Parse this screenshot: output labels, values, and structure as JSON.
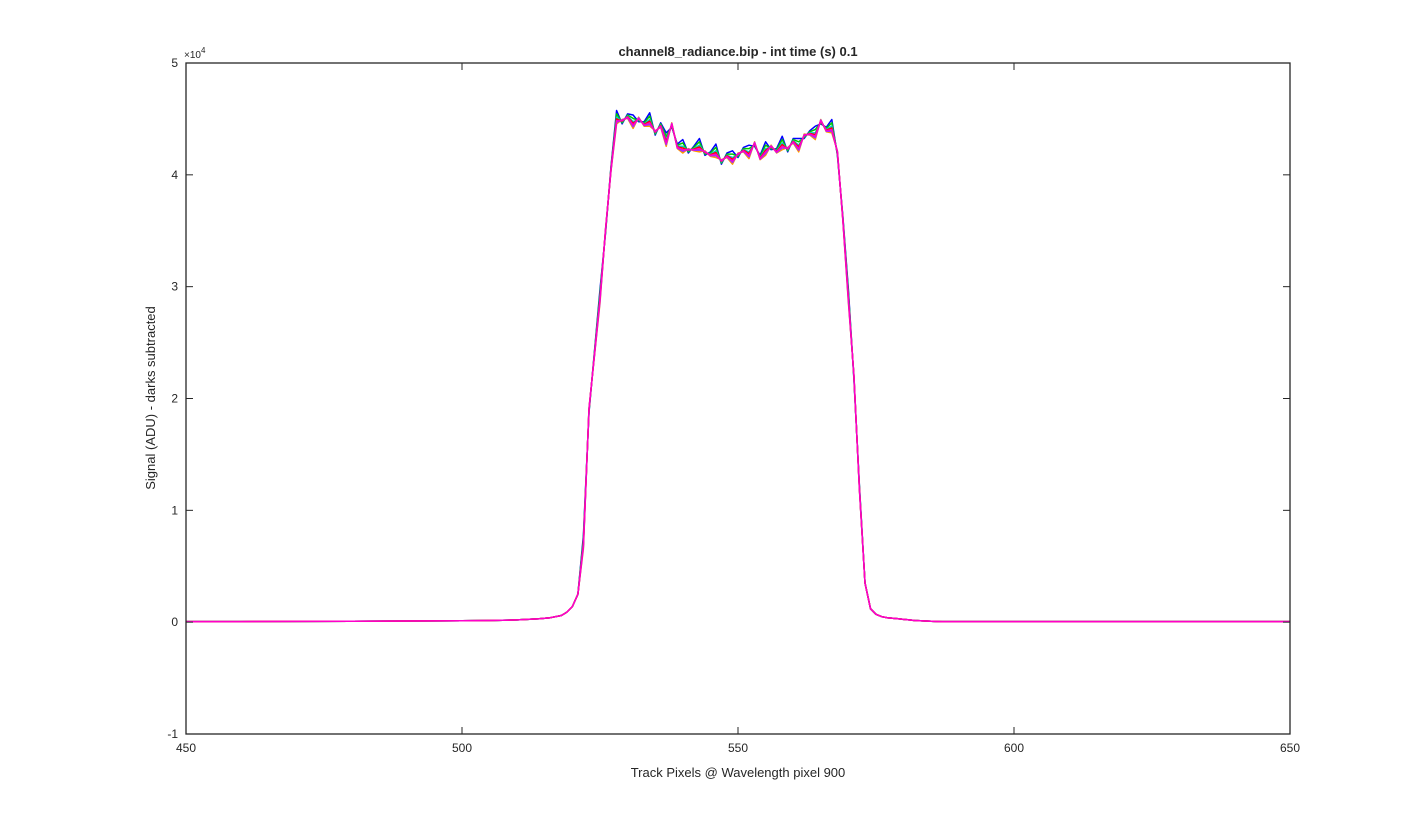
{
  "chart_data": {
    "type": "line",
    "title": "channel8_radiance.bip - int time (s) 0.1",
    "xlabel": "Track Pixels @ Wavelength pixel 900",
    "ylabel": "Signal (ADU) - darks subtracted",
    "y_exponent_label": "×10",
    "y_exponent_power": "4",
    "xlim": [
      450,
      650
    ],
    "ylim": [
      -1,
      5
    ],
    "xticks": [
      "450",
      "500",
      "550",
      "600",
      "650"
    ],
    "yticks": [
      "-1",
      "0",
      "1",
      "2",
      "3",
      "4",
      "5"
    ],
    "grid": false,
    "box": true,
    "y_scale_factor": 10000,
    "base_profile": {
      "x": [
        450,
        460,
        470,
        480,
        490,
        500,
        505,
        510,
        514,
        516,
        518,
        519,
        520,
        521,
        522,
        523,
        524,
        525,
        526,
        527,
        528,
        529,
        530,
        531,
        532,
        533,
        534,
        535,
        536,
        537,
        538,
        539,
        540,
        541,
        542,
        543,
        544,
        545,
        546,
        547,
        548,
        549,
        550,
        551,
        552,
        553,
        554,
        555,
        556,
        557,
        558,
        559,
        560,
        561,
        562,
        563,
        564,
        565,
        566,
        567,
        568,
        569,
        570,
        571,
        572,
        573,
        574,
        575,
        576,
        577,
        578,
        579,
        580,
        581,
        582,
        583,
        584,
        585,
        586,
        587,
        588,
        590,
        595,
        600,
        610,
        620,
        630,
        640,
        650
      ],
      "y": [
        0.005,
        0.005,
        0.007,
        0.008,
        0.01,
        0.012,
        0.015,
        0.02,
        0.03,
        0.04,
        0.06,
        0.09,
        0.14,
        0.25,
        0.7,
        1.9,
        2.4,
        2.9,
        3.5,
        4.05,
        4.5,
        4.48,
        4.52,
        4.46,
        4.5,
        4.45,
        4.48,
        4.38,
        4.44,
        4.3,
        4.45,
        4.25,
        4.24,
        4.22,
        4.23,
        4.25,
        4.2,
        4.18,
        4.2,
        4.12,
        4.17,
        4.14,
        4.18,
        4.22,
        4.19,
        4.28,
        4.15,
        4.22,
        4.25,
        4.21,
        4.27,
        4.23,
        4.3,
        4.25,
        4.35,
        4.37,
        4.36,
        4.48,
        4.4,
        4.42,
        4.2,
        3.6,
        2.9,
        2.2,
        1.2,
        0.35,
        0.12,
        0.07,
        0.05,
        0.04,
        0.035,
        0.03,
        0.025,
        0.02,
        0.015,
        0.012,
        0.01,
        0.008,
        0.006,
        0.005,
        0.005,
        0.005,
        0.005,
        0.005,
        0.005,
        0.005,
        0.005,
        0.005,
        0.005
      ]
    },
    "series": [
      {
        "color": "#0000ff",
        "offset": 0.05
      },
      {
        "color": "#00cc00",
        "offset": 0.03
      },
      {
        "color": "#00cccc",
        "offset": 0.01
      },
      {
        "color": "#ff9900",
        "offset": -0.03
      },
      {
        "color": "#9933ff",
        "offset": -0.02
      },
      {
        "color": "#ff0000",
        "offset": 0.0
      },
      {
        "color": "#ff00cc",
        "offset": -0.01
      }
    ]
  }
}
